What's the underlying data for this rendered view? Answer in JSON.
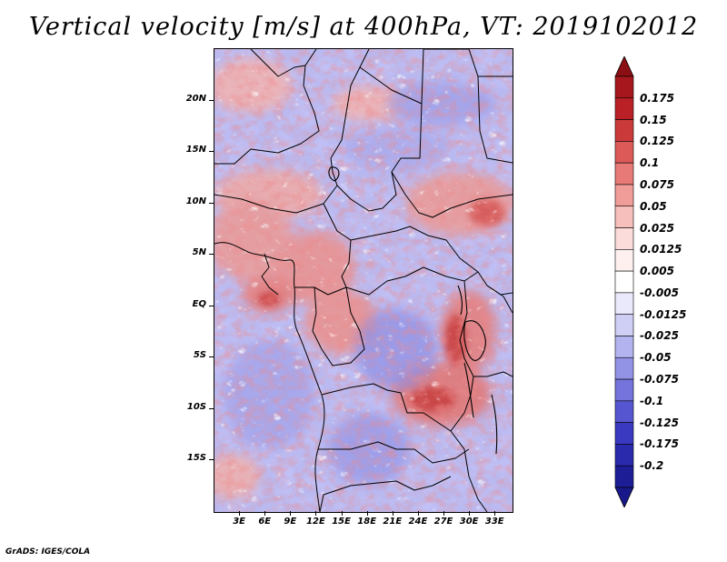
{
  "title": "Vertical velocity [m/s] at 400hPa, VT: 2019102012",
  "footer": "GrADS: IGES/COLA",
  "map": {
    "lat_labels": [
      "20N",
      "15N",
      "10N",
      "5N",
      "EQ",
      "5S",
      "10S",
      "15S"
    ],
    "lon_labels": [
      "3E",
      "6E",
      "9E",
      "12E",
      "15E",
      "18E",
      "21E",
      "24E",
      "27E",
      "30E",
      "33E"
    ],
    "lat_range": [
      -20,
      25
    ],
    "lon_range": [
      0,
      35
    ]
  },
  "colorbar": {
    "labels": [
      "0.175",
      "0.15",
      "0.125",
      "0.1",
      "0.075",
      "0.05",
      "0.025",
      "0.0125",
      "0.005",
      "-0.005",
      "-0.0125",
      "-0.025",
      "-0.05",
      "-0.075",
      "-0.1",
      "-0.125",
      "-0.175",
      "-0.2"
    ],
    "colors": [
      "#a5171c",
      "#b92127",
      "#cb3a3a",
      "#dc5a57",
      "#e77a76",
      "#f09c98",
      "#f7bfbb",
      "#fbdcda",
      "#fdf0ef",
      "#ffffff",
      "#e9e9fb",
      "#cfcff6",
      "#b3b3ef",
      "#9393e6",
      "#7474dc",
      "#5656d0",
      "#3a3ac0",
      "#2a2aac",
      "#1d1d96"
    ],
    "top_arrow_color": "#8c0f14",
    "bottom_arrow_color": "#18188a"
  }
}
